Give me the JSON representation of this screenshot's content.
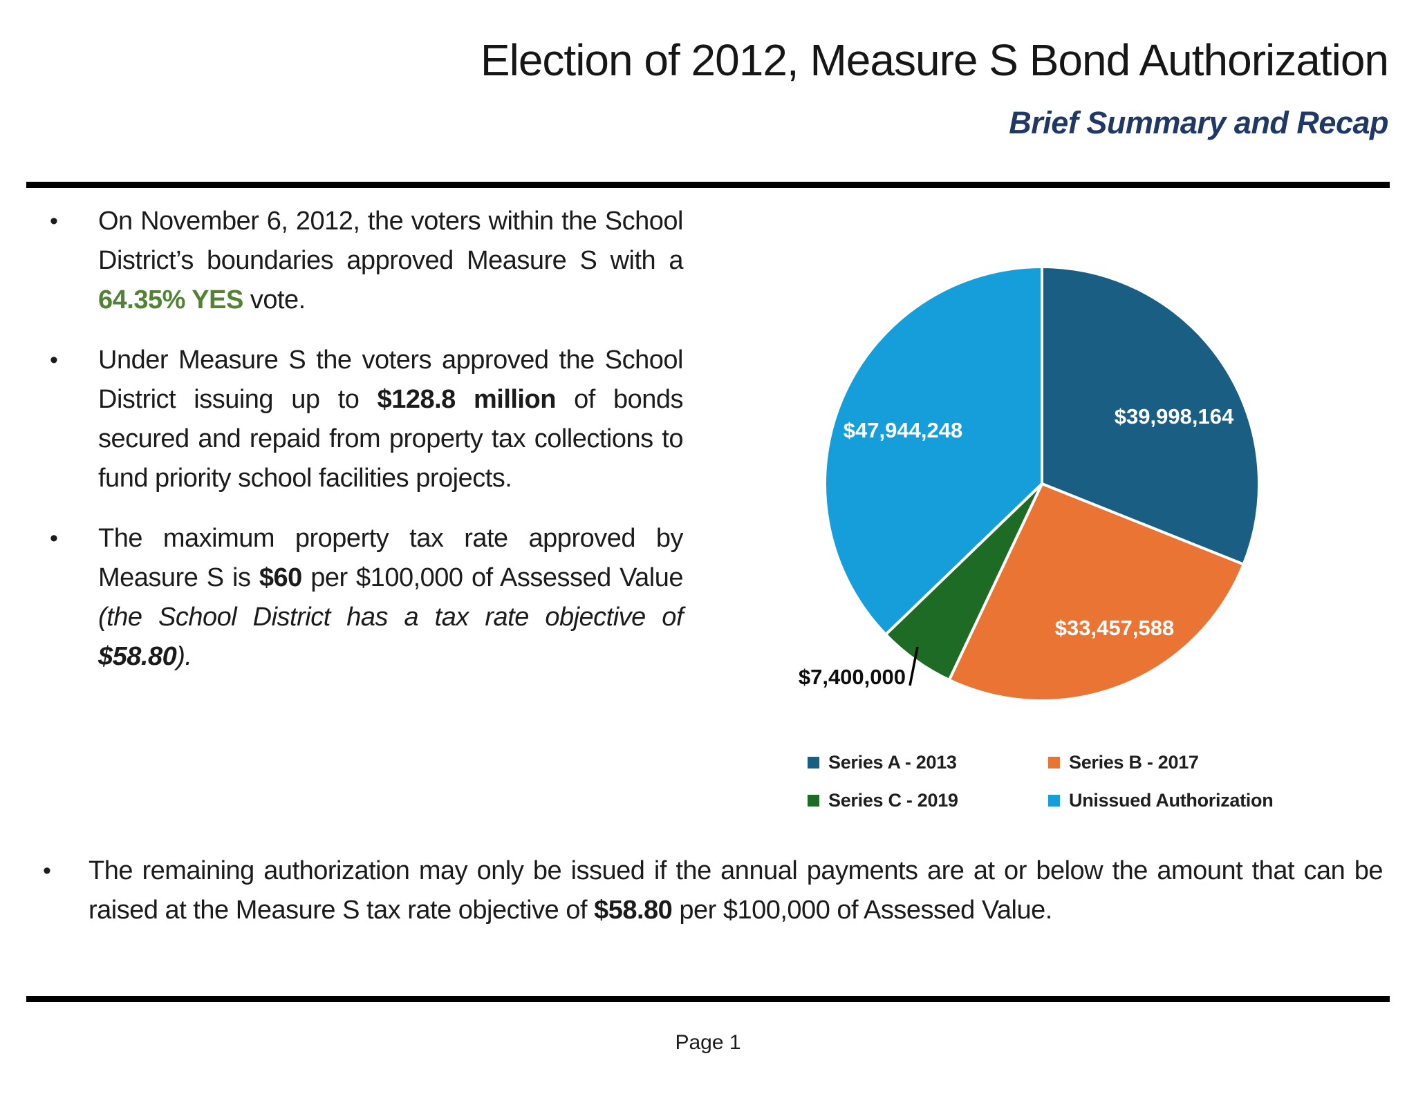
{
  "header": {
    "title": "Election of 2012, Measure S Bond Authorization",
    "subtitle": "Brief Summary and Recap",
    "subtitle_color": "#1f3864"
  },
  "bullets": {
    "b1": {
      "s0": "On November 6, 2012, the voters within the School District’s boundaries approved Measure S with a ",
      "highlight": "64.35% YES",
      "highlight_color": "#538135",
      "s2": " vote."
    },
    "b2": {
      "s0": "Under Measure S the voters approved the School District issuing up to ",
      "bold": "$128.8 million",
      "s2": " of bonds secured and repaid from property tax collections to fund priority school facilities projects."
    },
    "b3": {
      "s0": "The maximum property tax rate approved by Measure S is ",
      "bold1": "$60",
      "s2": " per $100,000 of Assessed Value ",
      "italic1": "(the School District has a tax rate objective of ",
      "bold_italic": "$58.80",
      "italic2": ")."
    },
    "b4": {
      "s0": "The remaining authorization may only be issued if the annual payments are at or below the amount that can be raised at the Measure S tax rate objective of ",
      "bold": "$58.80",
      "s2": " per $100,000 of Assessed Value."
    }
  },
  "chart_data": {
    "type": "pie",
    "title": "",
    "total": 128800000,
    "start_angle_deg": 0,
    "direction": "clockwise",
    "legend_position": "bottom",
    "slices": [
      {
        "label": "Series A - 2013",
        "value": 39998164,
        "display": "$39,998,164",
        "percent": 31.06,
        "color": "#1a5f83",
        "label_placement": "inside"
      },
      {
        "label": "Series B - 2017",
        "value": 33457588,
        "display": "$33,457,588",
        "percent": 25.98,
        "color": "#e97434",
        "label_placement": "inside"
      },
      {
        "label": "Series C - 2019",
        "value": 7400000,
        "display": "$7,400,000",
        "percent": 5.75,
        "color": "#1e6b26",
        "label_placement": "outside-with-leader-line"
      },
      {
        "label": "Unissued Authorization",
        "value": 47944248,
        "display": "$47,944,248",
        "percent": 37.22,
        "color": "#159eda",
        "label_placement": "inside"
      }
    ]
  },
  "footer": {
    "page_label": "Page 1"
  }
}
